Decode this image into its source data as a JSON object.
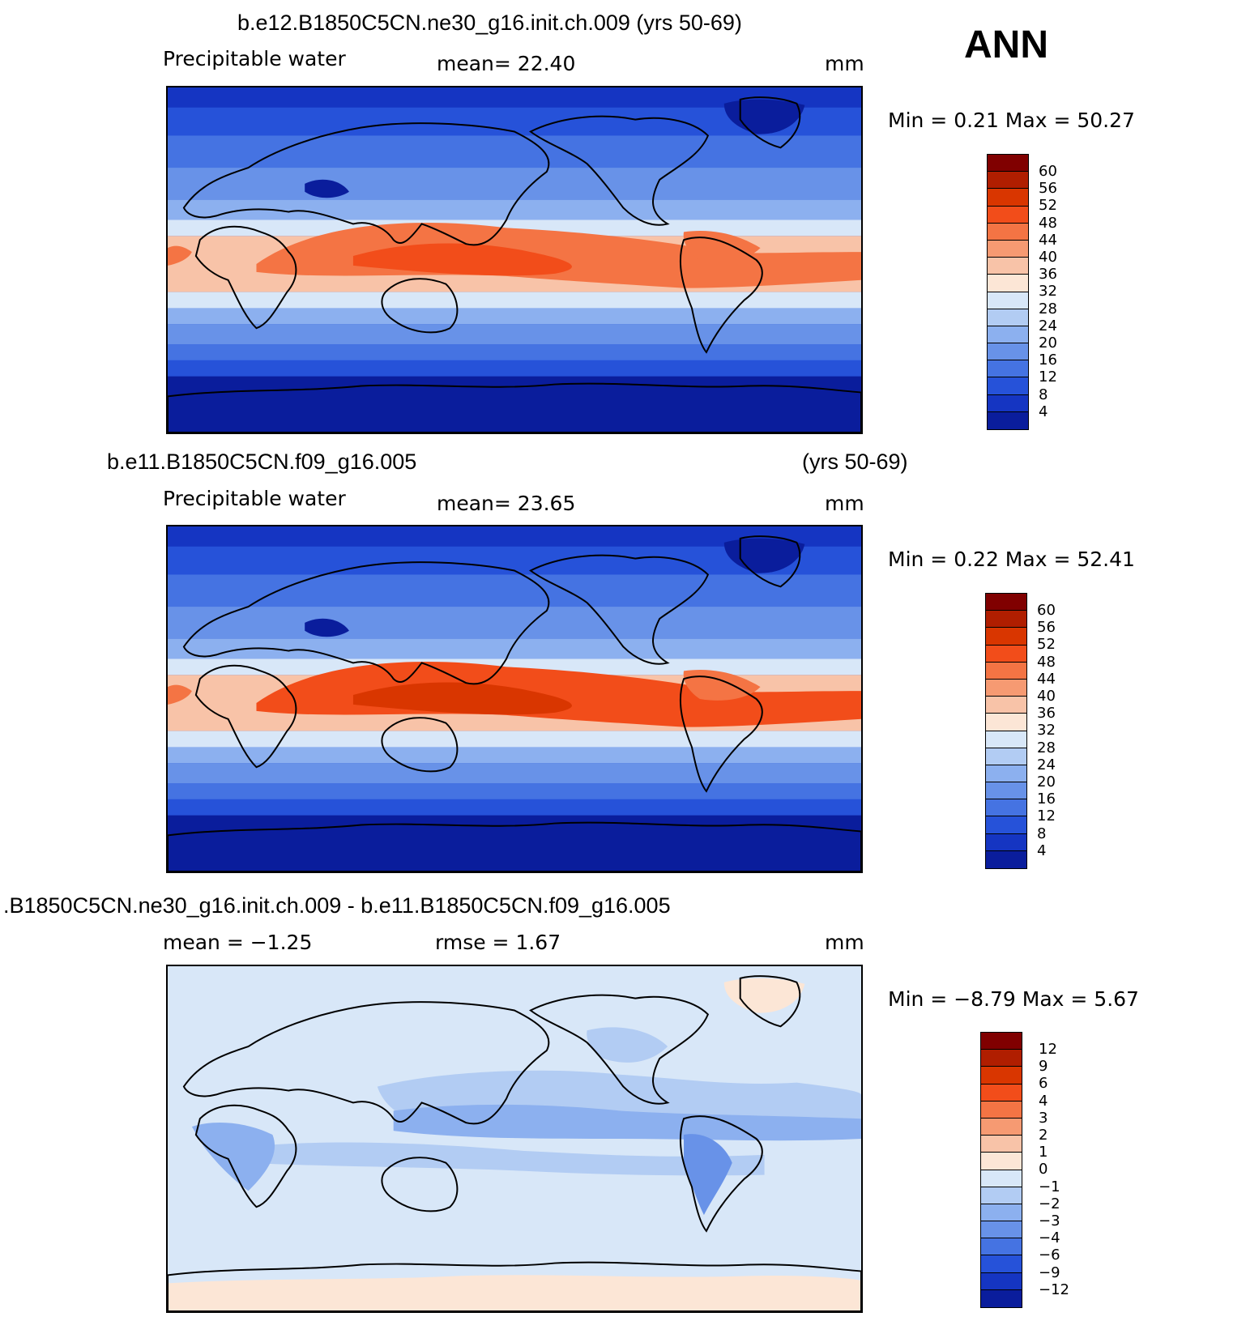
{
  "season": "ANN",
  "panels": [
    {
      "title": "b.e12.B1850C5CN.ne30_g16.init.ch.009 (yrs 50-69)",
      "title_right": "",
      "left_label": "Precipitable  water",
      "center_label": "mean=   22.40",
      "units": "mm",
      "minmax": "Min  =     0.21  Max  =    50.27",
      "colorbar": [
        "60",
        "56",
        "52",
        "48",
        "44",
        "40",
        "36",
        "32",
        "28",
        "24",
        "20",
        "16",
        "12",
        "8",
        "4"
      ],
      "colors": [
        "#800000",
        "#b01e00",
        "#d93600",
        "#f24d1a",
        "#f47444",
        "#f69a72",
        "#f8c3a8",
        "#fce6d6",
        "#d8e7f8",
        "#b2ccf3",
        "#8cb0ef",
        "#6892e8",
        "#4573e2",
        "#2652d9",
        "#1535c2",
        "#0a1d9c"
      ],
      "style": "full"
    },
    {
      "title": "b.e11.B1850C5CN.f09_g16.005",
      "title_right": "(yrs 50-69)",
      "left_label": "Precipitable  water",
      "center_label": "mean=   23.65",
      "units": "mm",
      "minmax": "Min  =     0.22  Max  =    52.41",
      "colorbar": [
        "60",
        "56",
        "52",
        "48",
        "44",
        "40",
        "36",
        "32",
        "28",
        "24",
        "20",
        "16",
        "12",
        "8",
        "4"
      ],
      "colors": [
        "#800000",
        "#b01e00",
        "#d93600",
        "#f24d1a",
        "#f47444",
        "#f69a72",
        "#f8c3a8",
        "#fce6d6",
        "#d8e7f8",
        "#b2ccf3",
        "#8cb0ef",
        "#6892e8",
        "#4573e2",
        "#2652d9",
        "#1535c2",
        "#0a1d9c"
      ],
      "style": "full2"
    },
    {
      "title": ".B1850C5CN.ne30_g16.init.ch.009 - b.e11.B1850C5CN.f09_g16.005",
      "title_right": "",
      "left_label": "mean  =   −1.25",
      "center_label": "rmse  =     1.67",
      "units": "mm",
      "minmax": "Min  =   −8.79  Max  =     5.67",
      "colorbar": [
        "12",
        "9",
        "6",
        "4",
        "3",
        "2",
        "1",
        "0",
        "−1",
        "−2",
        "−3",
        "−4",
        "−6",
        "−9",
        "−12"
      ],
      "colors": [
        "#800000",
        "#b01e00",
        "#d93600",
        "#f24d1a",
        "#f47444",
        "#f69a72",
        "#f8c3a8",
        "#fce6d6",
        "#d8e7f8",
        "#b2ccf3",
        "#8cb0ef",
        "#6892e8",
        "#4573e2",
        "#2652d9",
        "#1535c2",
        "#0a1d9c"
      ],
      "style": "diff"
    }
  ]
}
